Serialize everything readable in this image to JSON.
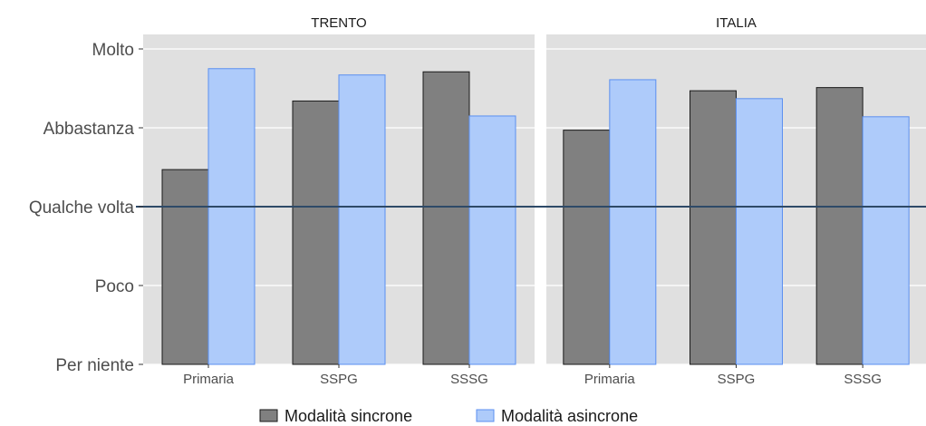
{
  "chart_data": {
    "type": "bar",
    "y_levels": [
      "Per niente",
      "Poco",
      "Qualche volta",
      "Abbastanza",
      "Molto"
    ],
    "ylim": [
      1,
      5.1
    ],
    "reference_line": 3,
    "categories": [
      "Primaria",
      "SSPG",
      "SSSG"
    ],
    "panels": [
      {
        "title": "TRENTO",
        "series": [
          {
            "name": "Modalità sincrone",
            "values": [
              3.47,
              4.34,
              4.71
            ]
          },
          {
            "name": "Modalità asincrone",
            "values": [
              4.75,
              4.67,
              4.15
            ]
          }
        ]
      },
      {
        "title": "ITALIA",
        "series": [
          {
            "name": "Modalità sincrone",
            "values": [
              3.97,
              4.47,
              4.51
            ]
          },
          {
            "name": "Modalità asincrone",
            "values": [
              4.61,
              4.37,
              4.14
            ]
          }
        ]
      }
    ],
    "colors": {
      "sincrone_fill": "#808080",
      "sincrone_stroke": "#1a1a1a",
      "asincrone_fill": "#aecbfa",
      "asincrone_stroke": "#5b8ff0",
      "panel_bg": "#e0e0e0",
      "grid": "#ffffff",
      "reference_line": "#2e4a68"
    },
    "grid": true,
    "legend_position": "bottom"
  }
}
